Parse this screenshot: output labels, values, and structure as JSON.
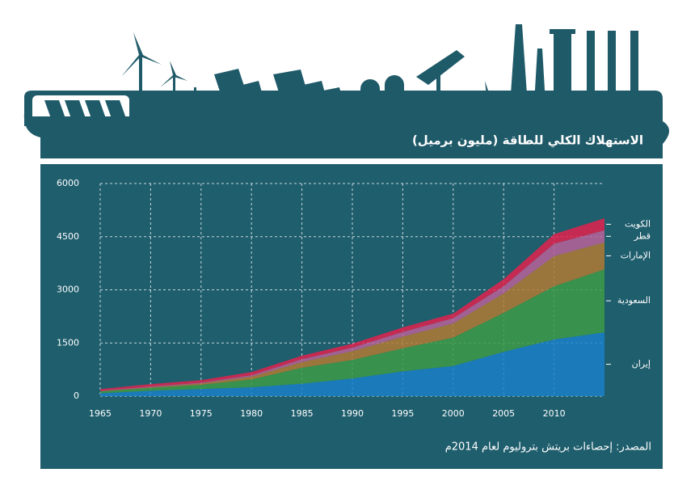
{
  "chart_data": {
    "type": "stacked_area",
    "title": "الاستهلاك الكلي للطاقة (مليون برميل)",
    "source": "المصدر: إحصاءات بريتش بتروليوم لعام 2014م",
    "x": [
      1965,
      1970,
      1975,
      1980,
      1985,
      1990,
      1995,
      2000,
      2005,
      2010,
      2015
    ],
    "xlim": [
      1965,
      2015
    ],
    "xticks": [
      1965,
      1970,
      1975,
      1980,
      1985,
      1990,
      1995,
      2000,
      2005,
      2010
    ],
    "ylim": [
      0,
      6000
    ],
    "yticks": [
      0,
      1500,
      3000,
      4500,
      6000
    ],
    "grid": true,
    "series": [
      {
        "name": "إيران",
        "color": "#1b80c8",
        "values": [
          80,
          150,
          200,
          250,
          350,
          500,
          700,
          850,
          1250,
          1600,
          1800
        ]
      },
      {
        "name": "السعودية",
        "color": "#3d9a46",
        "values": [
          50,
          80,
          120,
          220,
          450,
          520,
          650,
          800,
          1100,
          1500,
          1780
        ]
      },
      {
        "name": "الإمارات",
        "color": "#b27a34",
        "values": [
          10,
          20,
          40,
          80,
          160,
          250,
          330,
          400,
          550,
          850,
          760
        ]
      },
      {
        "name": "قطر",
        "color": "#b8639a",
        "values": [
          10,
          20,
          20,
          40,
          80,
          100,
          130,
          150,
          200,
          350,
          340
        ]
      },
      {
        "name": "الكويت",
        "color": "#e3224e",
        "values": [
          50,
          70,
          70,
          90,
          100,
          110,
          130,
          130,
          200,
          270,
          340
        ]
      }
    ]
  }
}
